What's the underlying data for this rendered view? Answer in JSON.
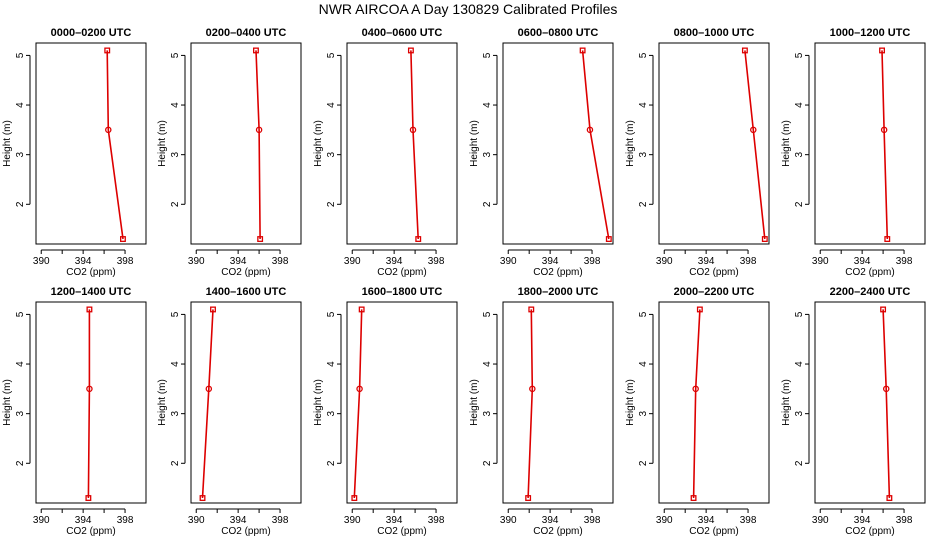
{
  "title": "NWR AIRCOA A  Day 130829  Calibrated Profiles",
  "colors": {
    "series": "#dd0000",
    "axes": "#000000",
    "background": "#ffffff"
  },
  "chart_data": {
    "type": "line",
    "layout": "2x6 small multiples",
    "xlabel": "CO2 (ppm)",
    "ylabel": "Height (m)",
    "xlim": [
      389.5,
      400.0
    ],
    "ylim": [
      1.2,
      5.25
    ],
    "xticks": [
      390,
      394,
      398
    ],
    "yticks": [
      2,
      3,
      4,
      5
    ],
    "grid": false,
    "panels": [
      {
        "title": "0000–0200 UTC",
        "points": [
          {
            "x": 396.3,
            "y": 5.1
          },
          {
            "x": 396.4,
            "y": 3.5
          },
          {
            "x": 397.8,
            "y": 1.3
          }
        ]
      },
      {
        "title": "0200–0400 UTC",
        "points": [
          {
            "x": 395.7,
            "y": 5.1
          },
          {
            "x": 396.0,
            "y": 3.5
          },
          {
            "x": 396.1,
            "y": 1.3
          }
        ]
      },
      {
        "title": "0400–0600 UTC",
        "points": [
          {
            "x": 395.6,
            "y": 5.1
          },
          {
            "x": 395.8,
            "y": 3.5
          },
          {
            "x": 396.3,
            "y": 1.3
          }
        ]
      },
      {
        "title": "0600–0800 UTC",
        "points": [
          {
            "x": 397.1,
            "y": 5.1
          },
          {
            "x": 397.8,
            "y": 3.5
          },
          {
            "x": 399.6,
            "y": 1.3
          }
        ]
      },
      {
        "title": "0800–1000 UTC",
        "points": [
          {
            "x": 397.7,
            "y": 5.1
          },
          {
            "x": 398.5,
            "y": 3.5
          },
          {
            "x": 399.6,
            "y": 1.3
          }
        ]
      },
      {
        "title": "1000–1200 UTC",
        "points": [
          {
            "x": 395.9,
            "y": 5.1
          },
          {
            "x": 396.1,
            "y": 3.5
          },
          {
            "x": 396.4,
            "y": 1.3
          }
        ]
      },
      {
        "title": "1200–1400 UTC",
        "points": [
          {
            "x": 394.6,
            "y": 5.1
          },
          {
            "x": 394.6,
            "y": 3.5
          },
          {
            "x": 394.5,
            "y": 1.3
          }
        ]
      },
      {
        "title": "1400–1600 UTC",
        "points": [
          {
            "x": 391.6,
            "y": 5.1
          },
          {
            "x": 391.2,
            "y": 3.5
          },
          {
            "x": 390.6,
            "y": 1.3
          }
        ]
      },
      {
        "title": "1600–1800 UTC",
        "points": [
          {
            "x": 390.9,
            "y": 5.1
          },
          {
            "x": 390.7,
            "y": 3.5
          },
          {
            "x": 390.2,
            "y": 1.3
          }
        ]
      },
      {
        "title": "1800–2000 UTC",
        "points": [
          {
            "x": 392.2,
            "y": 5.1
          },
          {
            "x": 392.3,
            "y": 3.5
          },
          {
            "x": 391.9,
            "y": 1.3
          }
        ]
      },
      {
        "title": "2000–2200 UTC",
        "points": [
          {
            "x": 393.4,
            "y": 5.1
          },
          {
            "x": 393.0,
            "y": 3.5
          },
          {
            "x": 392.8,
            "y": 1.3
          }
        ]
      },
      {
        "title": "2200–2400 UTC",
        "points": [
          {
            "x": 396.0,
            "y": 5.1
          },
          {
            "x": 396.3,
            "y": 3.5
          },
          {
            "x": 396.6,
            "y": 1.3
          }
        ]
      }
    ]
  }
}
